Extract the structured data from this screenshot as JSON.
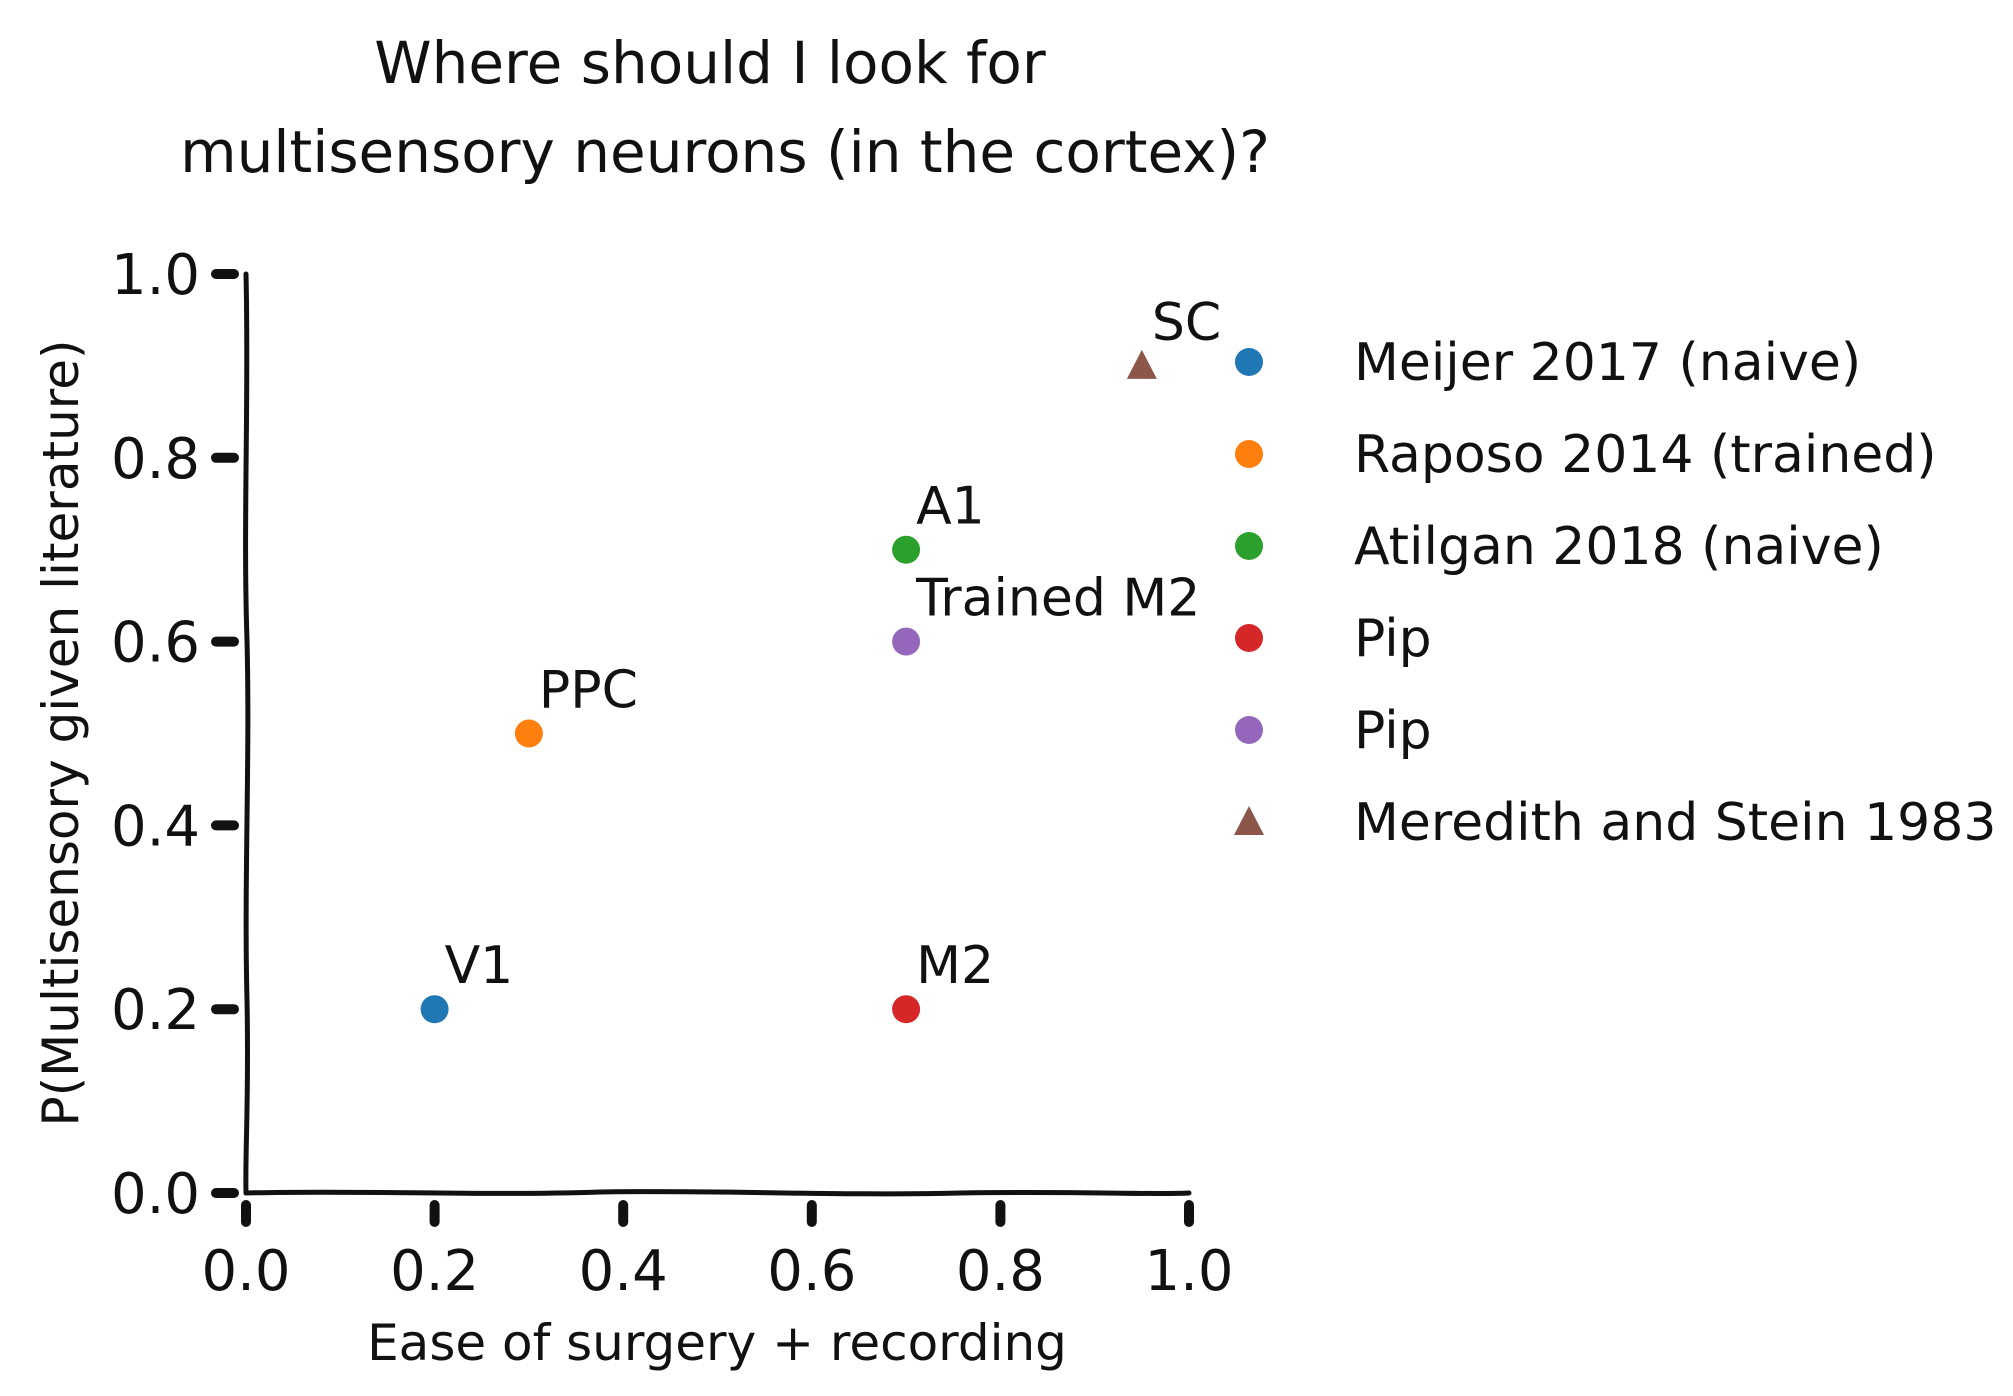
{
  "chart_data": {
    "type": "scatter",
    "title_lines": [
      "Where should I look for",
      "multisensory neurons (in the cortex)?"
    ],
    "xlabel": "Ease of surgery + recording",
    "ylabel": "P(Multisensory given literature)",
    "xlim": [
      0.0,
      1.0
    ],
    "ylim": [
      0.0,
      1.0
    ],
    "xticks": [
      "0.0",
      "0.2",
      "0.4",
      "0.6",
      "0.8",
      "1.0"
    ],
    "yticks": [
      "0.0",
      "0.2",
      "0.4",
      "0.6",
      "0.8",
      "1.0"
    ],
    "grid": false,
    "legend_position": "right",
    "series": [
      {
        "name": "Meijer 2017 (naive)",
        "marker": "circle",
        "color": "#1f77b4",
        "x": 0.2,
        "y": 0.2,
        "label": "V1"
      },
      {
        "name": "Raposo 2014 (trained)",
        "marker": "circle",
        "color": "#ff7f0e",
        "x": 0.3,
        "y": 0.5,
        "label": "PPC"
      },
      {
        "name": "Atilgan 2018 (naive)",
        "marker": "circle",
        "color": "#2ca02c",
        "x": 0.7,
        "y": 0.7,
        "label": "A1"
      },
      {
        "name": "Pip",
        "marker": "circle",
        "color": "#d62728",
        "x": 0.7,
        "y": 0.2,
        "label": "M2"
      },
      {
        "name": "Pip",
        "marker": "circle",
        "color": "#9467bd",
        "x": 0.7,
        "y": 0.6,
        "label": "Trained M2"
      },
      {
        "name": "Meredith and Stein 1983",
        "marker": "triangle",
        "color": "#8c564b",
        "x": 0.95,
        "y": 0.9,
        "label": "SC"
      }
    ]
  }
}
